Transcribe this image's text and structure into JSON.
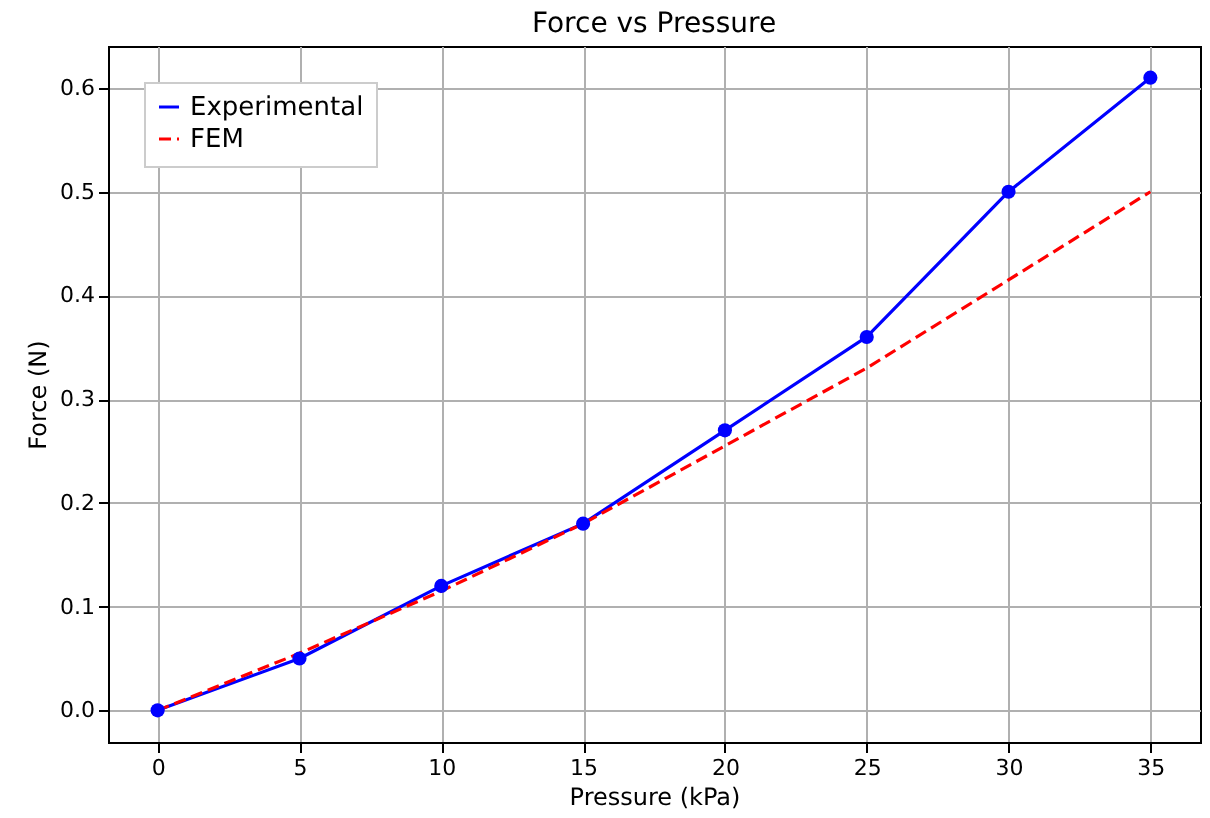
{
  "chart_data": {
    "type": "line",
    "title": "Force vs Pressure",
    "xlabel": "Pressure (kPa)",
    "ylabel": "Force (N)",
    "x": [
      0,
      5,
      10,
      15,
      20,
      25,
      30,
      35
    ],
    "series": [
      {
        "name": "Experimental",
        "color": "#0000ff",
        "marker": "circle",
        "line_style": "solid",
        "values": [
          0,
          0.05,
          0.12,
          0.18,
          0.27,
          0.36,
          0.5,
          0.61
        ]
      },
      {
        "name": "FEM",
        "color": "#ff0000",
        "marker": "none",
        "line_style": "dashed",
        "values": [
          0,
          0.055,
          0.115,
          0.18,
          0.255,
          0.33,
          0.415,
          0.5
        ]
      }
    ],
    "xlim": [
      -1.75,
      36.75
    ],
    "ylim": [
      -0.0305,
      0.6405
    ],
    "xticks": [
      0,
      5,
      10,
      15,
      20,
      25,
      30,
      35
    ],
    "yticks": [
      {
        "value": 0,
        "label": "0.0"
      },
      0.1,
      0.2,
      0.3,
      0.4,
      0.5,
      0.6
    ],
    "grid": true,
    "legend": "top left"
  }
}
